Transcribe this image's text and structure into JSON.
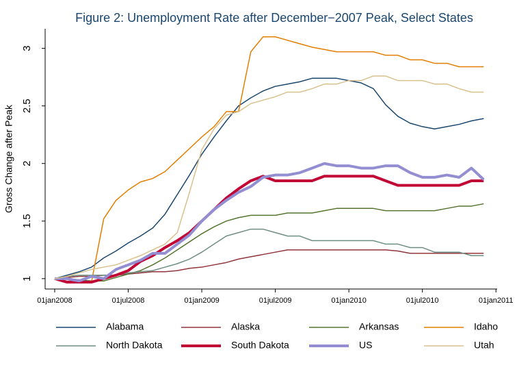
{
  "chart_data": {
    "type": "line",
    "title": "Figure 2: Unemployment Rate after December−2007 Peak, Select States",
    "y_label": "Gross Change after Peak",
    "x": [
      0,
      1,
      2,
      3,
      4,
      5,
      6,
      7,
      8,
      9,
      10,
      11,
      12,
      13,
      14,
      15,
      16,
      17,
      18,
      19,
      20,
      21,
      22,
      23,
      24,
      25,
      26,
      27,
      28,
      29,
      30,
      31,
      32,
      33,
      34,
      35
    ],
    "xlim": [
      -0.78,
      36.1
    ],
    "xticks": [
      {
        "value": 0,
        "label": "01jan2008"
      },
      {
        "value": 6,
        "label": "01jul2008"
      },
      {
        "value": 12,
        "label": "01jan2009"
      },
      {
        "value": 18,
        "label": "01jul2009"
      },
      {
        "value": 24,
        "label": "01jan2010"
      },
      {
        "value": 30,
        "label": "01jul2010"
      },
      {
        "value": 36,
        "label": "01jan2011"
      }
    ],
    "ylim": [
      0.91,
      3.17
    ],
    "yticks": [
      1,
      1.5,
      2,
      2.5,
      3
    ],
    "grid": false,
    "series": [
      {
        "name": "Alabama",
        "color": "#1a476f",
        "width": 1.5,
        "values": [
          1.0,
          1.03,
          1.06,
          1.1,
          1.18,
          1.24,
          1.31,
          1.37,
          1.44,
          1.56,
          1.73,
          1.9,
          2.08,
          2.23,
          2.37,
          2.5,
          2.57,
          2.63,
          2.67,
          2.69,
          2.71,
          2.74,
          2.74,
          2.74,
          2.72,
          2.7,
          2.65,
          2.51,
          2.41,
          2.35,
          2.32,
          2.3,
          2.32,
          2.34,
          2.37,
          2.39
        ]
      },
      {
        "name": "Alaska",
        "color": "#90353b",
        "width": 1.5,
        "values": [
          1.0,
          1.01,
          1.02,
          1.02,
          1.03,
          1.03,
          1.04,
          1.05,
          1.06,
          1.06,
          1.07,
          1.09,
          1.1,
          1.12,
          1.14,
          1.17,
          1.19,
          1.21,
          1.23,
          1.25,
          1.25,
          1.25,
          1.25,
          1.25,
          1.25,
          1.25,
          1.25,
          1.25,
          1.24,
          1.22,
          1.22,
          1.22,
          1.22,
          1.22,
          1.22,
          1.22
        ]
      },
      {
        "name": "Arkansas",
        "color": "#55752f",
        "width": 1.5,
        "values": [
          1.0,
          1.0,
          0.99,
          0.98,
          0.98,
          1.01,
          1.04,
          1.07,
          1.12,
          1.18,
          1.25,
          1.32,
          1.39,
          1.45,
          1.5,
          1.53,
          1.55,
          1.55,
          1.55,
          1.57,
          1.57,
          1.57,
          1.59,
          1.61,
          1.61,
          1.61,
          1.61,
          1.59,
          1.59,
          1.59,
          1.59,
          1.59,
          1.61,
          1.63,
          1.63,
          1.65
        ]
      },
      {
        "name": "Idaho",
        "color": "#e37e00",
        "width": 1.5,
        "values": [
          1.0,
          1.0,
          0.98,
          0.97,
          1.52,
          1.68,
          1.77,
          1.84,
          1.87,
          1.93,
          2.03,
          2.13,
          2.23,
          2.32,
          2.45,
          2.45,
          2.97,
          3.1,
          3.1,
          3.07,
          3.04,
          3.01,
          2.99,
          2.97,
          2.97,
          2.97,
          2.97,
          2.94,
          2.94,
          2.9,
          2.9,
          2.87,
          2.87,
          2.84,
          2.84,
          2.84
        ]
      },
      {
        "name": "North Dakota",
        "color": "#6e8e84",
        "width": 1.5,
        "values": [
          1.0,
          1.02,
          1.03,
          1.03,
          1.03,
          1.03,
          1.05,
          1.06,
          1.07,
          1.1,
          1.13,
          1.17,
          1.23,
          1.3,
          1.37,
          1.4,
          1.43,
          1.43,
          1.4,
          1.37,
          1.37,
          1.33,
          1.33,
          1.33,
          1.33,
          1.33,
          1.33,
          1.3,
          1.3,
          1.27,
          1.27,
          1.23,
          1.23,
          1.23,
          1.2,
          1.2
        ]
      },
      {
        "name": "South Dakota",
        "color": "#c10534",
        "width": 4,
        "values": [
          1.0,
          0.97,
          0.97,
          0.97,
          1.0,
          1.03,
          1.07,
          1.15,
          1.2,
          1.27,
          1.33,
          1.4,
          1.5,
          1.6,
          1.7,
          1.78,
          1.85,
          1.89,
          1.85,
          1.85,
          1.85,
          1.85,
          1.89,
          1.89,
          1.89,
          1.89,
          1.89,
          1.85,
          1.81,
          1.81,
          1.81,
          1.81,
          1.81,
          1.81,
          1.85,
          1.85
        ]
      },
      {
        "name": "US",
        "color": "#938dd2",
        "width": 4,
        "values": [
          1.0,
          1.0,
          0.98,
          1.02,
          1.0,
          1.08,
          1.12,
          1.16,
          1.22,
          1.22,
          1.3,
          1.38,
          1.5,
          1.6,
          1.68,
          1.75,
          1.8,
          1.88,
          1.9,
          1.9,
          1.92,
          1.96,
          2.0,
          1.98,
          1.98,
          1.96,
          1.96,
          1.98,
          1.98,
          1.92,
          1.88,
          1.88,
          1.9,
          1.88,
          1.96,
          1.86
        ]
      },
      {
        "name": "Utah",
        "color": "#d9c18e",
        "width": 1.5,
        "values": [
          1.0,
          1.02,
          1.05,
          1.08,
          1.1,
          1.12,
          1.16,
          1.2,
          1.25,
          1.3,
          1.4,
          1.75,
          2.12,
          2.3,
          2.42,
          2.45,
          2.52,
          2.55,
          2.58,
          2.62,
          2.62,
          2.65,
          2.69,
          2.69,
          2.72,
          2.72,
          2.76,
          2.76,
          2.72,
          2.72,
          2.72,
          2.69,
          2.69,
          2.65,
          2.62,
          2.62
        ]
      }
    ]
  }
}
